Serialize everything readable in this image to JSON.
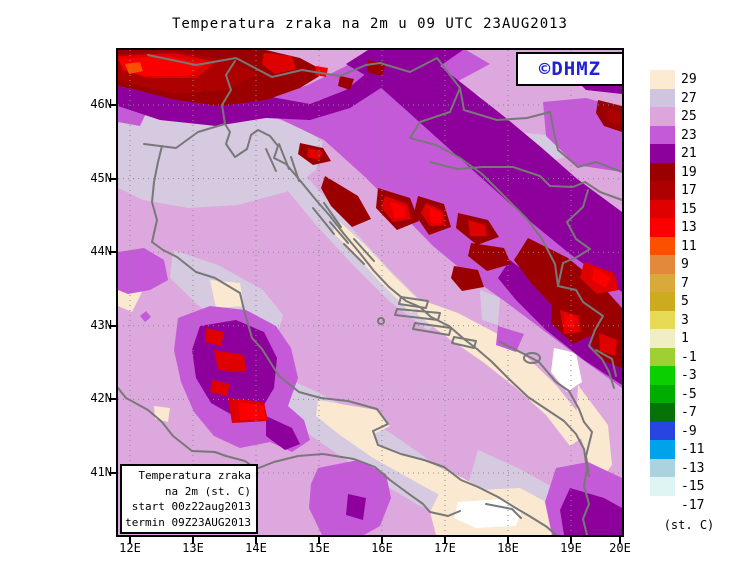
{
  "title": "Temperatura zraka na 2m u 09 UTC 23AUG2013",
  "logo": {
    "text": "©DHMZ",
    "color": "#2121D1"
  },
  "info_box": {
    "lines": [
      "Temperatura zraka",
      "na 2m (st. C)",
      "start 00z22aug2013",
      "termin 09Z23AUG2013"
    ]
  },
  "axes": {
    "lat": [
      "46N",
      "45N",
      "44N",
      "43N",
      "42N",
      "41N"
    ],
    "lon": [
      "12E",
      "13E",
      "14E",
      "15E",
      "16E",
      "17E",
      "18E",
      "19E",
      "20E"
    ]
  },
  "colorbar": {
    "unit": "(st. C)",
    "entries": [
      {
        "label": "29",
        "color": "#FCEAD3"
      },
      {
        "label": "27",
        "color": "#CFC5DF"
      },
      {
        "label": "25",
        "color": "#DCA5DC"
      },
      {
        "label": "23",
        "color": "#C45AD7"
      },
      {
        "label": "21",
        "color": "#8E009B"
      },
      {
        "label": "19",
        "color": "#9B0000"
      },
      {
        "label": "17",
        "color": "#AD0000"
      },
      {
        "label": "15",
        "color": "#DF0000"
      },
      {
        "label": "13",
        "color": "#FA0000"
      },
      {
        "label": "11",
        "color": "#FC5000"
      },
      {
        "label": "9",
        "color": "#E2893B"
      },
      {
        "label": "7",
        "color": "#D9A93C"
      },
      {
        "label": "5",
        "color": "#CCAB1F"
      },
      {
        "label": "3",
        "color": "#E7DB55"
      },
      {
        "label": "1",
        "color": "#EFEFC3"
      },
      {
        "label": "-1",
        "color": "#9ECF33"
      },
      {
        "label": "-3",
        "color": "#0BCF00"
      },
      {
        "label": "-5",
        "color": "#00AC00"
      },
      {
        "label": "-7",
        "color": "#077207"
      },
      {
        "label": "-9",
        "color": "#2945E1"
      },
      {
        "label": "-11",
        "color": "#00A3E9"
      },
      {
        "label": "-13",
        "color": "#AAD3DF"
      },
      {
        "label": "-15",
        "color": "#DEF5F3"
      },
      {
        "label": "-17",
        "color": "#FFFFFF"
      }
    ]
  }
}
